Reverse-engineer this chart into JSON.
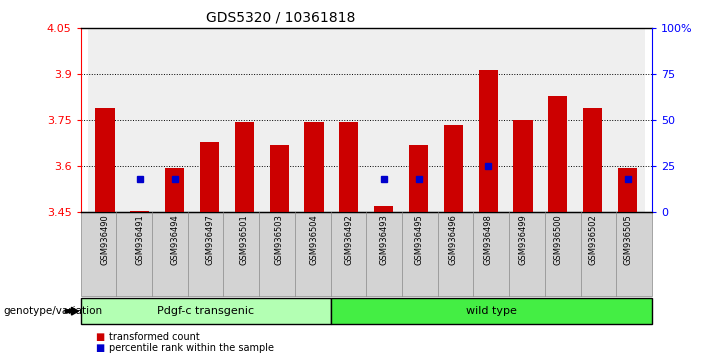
{
  "title": "GDS5320 / 10361818",
  "samples": [
    "GSM936490",
    "GSM936491",
    "GSM936494",
    "GSM936497",
    "GSM936501",
    "GSM936503",
    "GSM936504",
    "GSM936492",
    "GSM936493",
    "GSM936495",
    "GSM936496",
    "GSM936498",
    "GSM936499",
    "GSM936500",
    "GSM936502",
    "GSM936505"
  ],
  "transformed_count": [
    3.79,
    3.455,
    3.595,
    3.68,
    3.745,
    3.67,
    3.745,
    3.745,
    3.47,
    3.67,
    3.735,
    3.915,
    3.75,
    3.83,
    3.79,
    3.595
  ],
  "pct_vals": [
    null,
    18,
    18,
    null,
    null,
    null,
    null,
    null,
    18,
    18,
    null,
    25,
    null,
    null,
    null,
    18
  ],
  "group1_count": 7,
  "group2_count": 9,
  "group1_label": "Pdgf-c transgenic",
  "group2_label": "wild type",
  "genotype_label": "genotype/variation",
  "ylim": [
    3.45,
    4.05
  ],
  "yticks": [
    3.45,
    3.6,
    3.75,
    3.9,
    4.05
  ],
  "ytick_labels": [
    "3.45",
    "3.6",
    "3.75",
    "3.9",
    "4.05"
  ],
  "y2ticks": [
    0,
    25,
    50,
    75,
    100
  ],
  "y2tick_labels": [
    "0",
    "25",
    "50",
    "75",
    "100%"
  ],
  "grid_lines": [
    3.6,
    3.75,
    3.9
  ],
  "bar_color": "#cc0000",
  "dot_color": "#0000cc",
  "bar_width": 0.55,
  "background_color": "#ffffff",
  "col_bg_color": "#d3d3d3",
  "group1_color": "#b3ffb3",
  "group2_color": "#44ee44",
  "legend_items": [
    "transformed count",
    "percentile rank within the sample"
  ]
}
